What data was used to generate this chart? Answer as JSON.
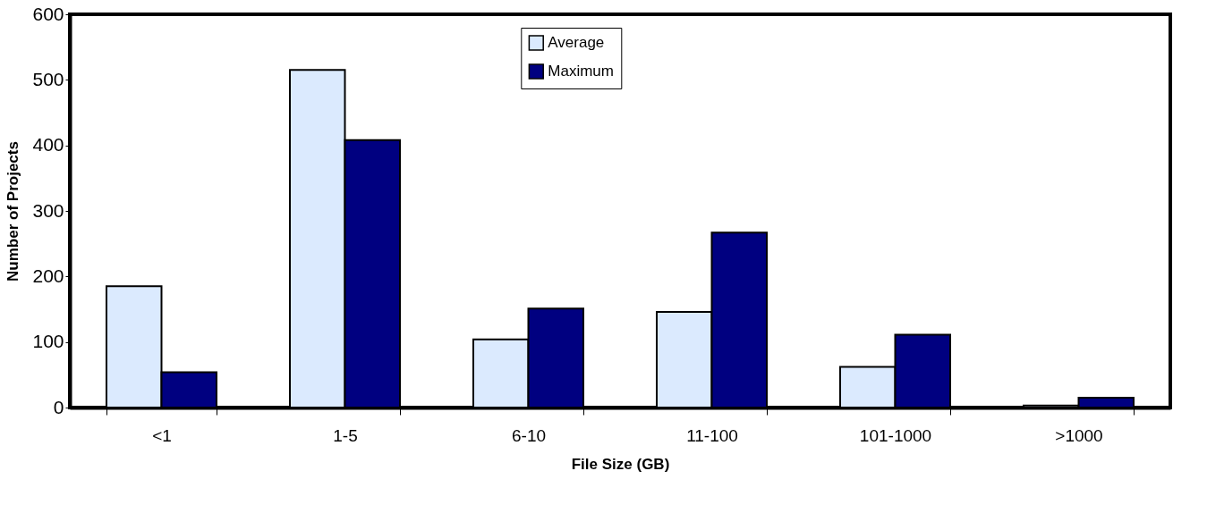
{
  "chart_data": {
    "type": "bar",
    "xlabel": "File Size (GB)",
    "ylabel": "Number of Projects",
    "categories": [
      "<1",
      "1-5",
      "6-10",
      "11-100",
      "101-1000",
      ">1000"
    ],
    "series": [
      {
        "name": "Average",
        "color": "#dbeafe",
        "values": [
          185,
          515,
          104,
          146,
          62,
          3
        ]
      },
      {
        "name": "Maximum",
        "color": "#000080",
        "values": [
          54,
          408,
          151,
          267,
          111,
          15
        ]
      }
    ],
    "ylim": [
      0,
      600
    ],
    "yticks": [
      0,
      100,
      200,
      300,
      400,
      500,
      600
    ],
    "grid": false,
    "legend": "top"
  }
}
